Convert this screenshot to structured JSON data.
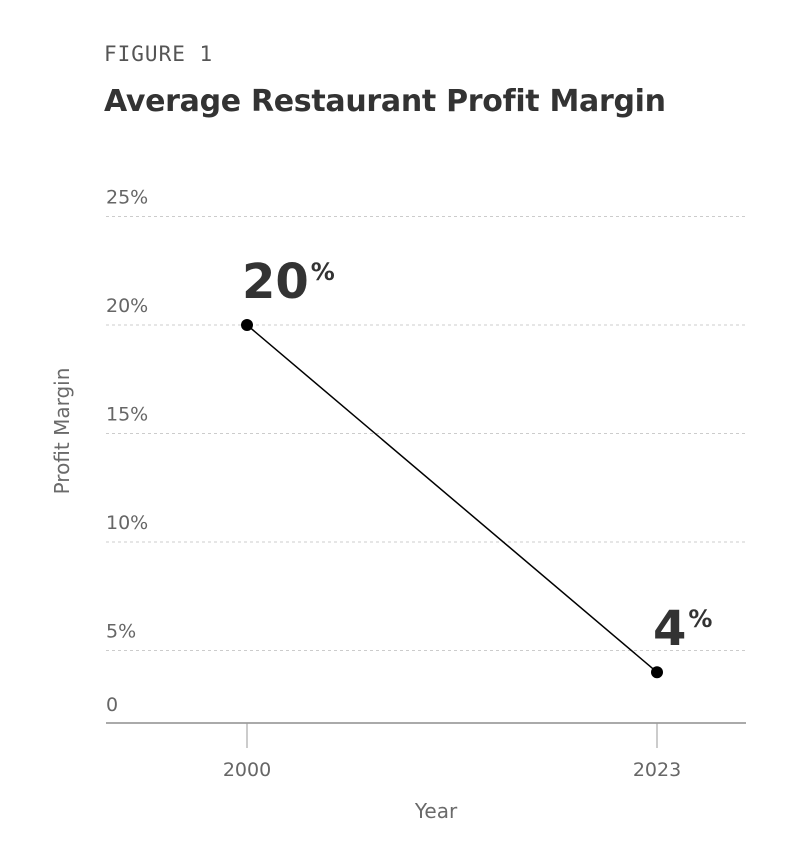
{
  "figure_label": "FIGURE 1",
  "colors": {
    "line": "#000000",
    "grid": "#cccccc",
    "text": "#333333",
    "axis_text": "#666666"
  },
  "chart_data": {
    "type": "line",
    "title": "Average Restaurant Profit Margin",
    "xlabel": "Year",
    "ylabel": "Profit Margin",
    "categories": [
      "2000",
      "2023"
    ],
    "series": [
      {
        "values": [
          20,
          4
        ]
      }
    ],
    "data_labels": [
      {
        "value": "20",
        "unit": "%"
      },
      {
        "value": "4",
        "unit": "%"
      }
    ],
    "y_ticks": [
      {
        "value": 0,
        "label": "0"
      },
      {
        "value": 5,
        "label": "5%"
      },
      {
        "value": 10,
        "label": "10%"
      },
      {
        "value": 15,
        "label": "15%"
      },
      {
        "value": 20,
        "label": "20%"
      },
      {
        "value": 25,
        "label": "25%"
      }
    ],
    "ylim": [
      0,
      25
    ],
    "grid": true,
    "legend": "none"
  }
}
